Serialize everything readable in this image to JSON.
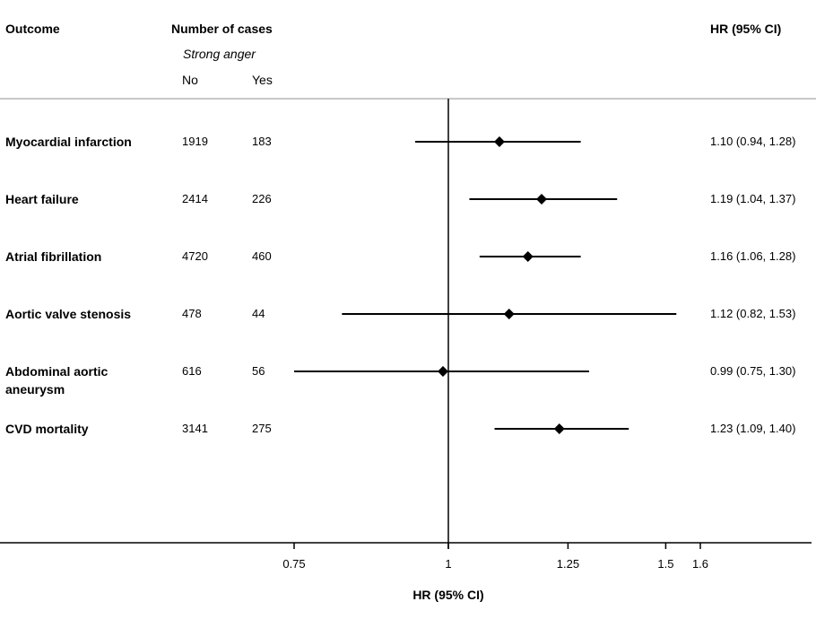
{
  "header": {
    "outcome": "Outcome",
    "number_of_cases": "Number of cases",
    "strong_anger": "Strong anger",
    "no": "No",
    "yes": "Yes",
    "hr_ci": "HR (95% CI)"
  },
  "chart_data": {
    "type": "forest",
    "xlabel": "HR (95% CI)",
    "xscale": "log",
    "xlim": [
      0.75,
      1.6
    ],
    "ticks": [
      "0.75",
      "1",
      "1.25",
      "1.5",
      "1.6"
    ],
    "reference_line": 1,
    "rows": [
      {
        "outcome": "Myocardial infarction",
        "no": "1919",
        "yes": "183",
        "hr": 1.1,
        "lo": 0.94,
        "hi": 1.28,
        "ci_text": "1.10 (0.94, 1.28)"
      },
      {
        "outcome": "Heart failure",
        "no": "2414",
        "yes": "226",
        "hr": 1.19,
        "lo": 1.04,
        "hi": 1.37,
        "ci_text": "1.19 (1.04, 1.37)"
      },
      {
        "outcome": "Atrial fibrillation",
        "no": "4720",
        "yes": "460",
        "hr": 1.16,
        "lo": 1.06,
        "hi": 1.28,
        "ci_text": "1.16 (1.06, 1.28)"
      },
      {
        "outcome": "Aortic valve stenosis",
        "no": "478",
        "yes": "44",
        "hr": 1.12,
        "lo": 0.82,
        "hi": 1.53,
        "ci_text": "1.12 (0.82, 1.53)"
      },
      {
        "outcome": "Abdominal aortic aneurysm",
        "no": "616",
        "yes": "56",
        "hr": 0.99,
        "lo": 0.75,
        "hi": 1.3,
        "ci_text": "0.99 (0.75, 1.30)"
      },
      {
        "outcome": "CVD mortality",
        "no": "3141",
        "yes": "275",
        "hr": 1.23,
        "lo": 1.09,
        "hi": 1.4,
        "ci_text": "1.23 (1.09, 1.40)"
      }
    ]
  }
}
